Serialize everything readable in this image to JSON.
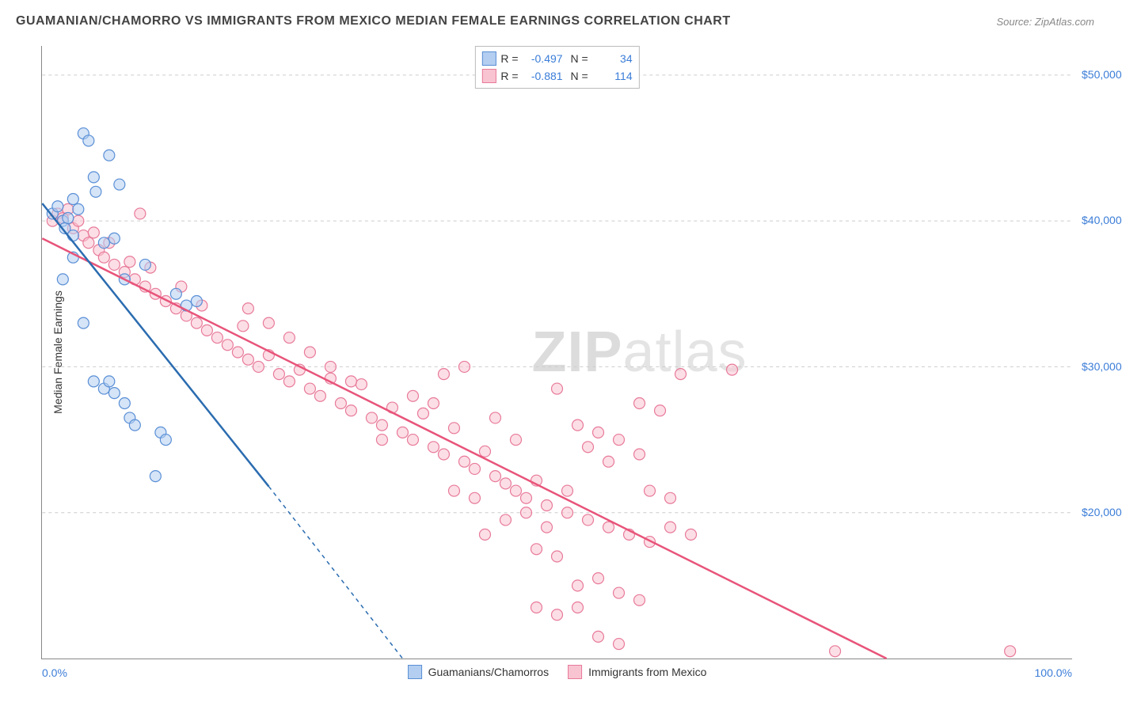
{
  "title": "GUAMANIAN/CHAMORRO VS IMMIGRANTS FROM MEXICO MEDIAN FEMALE EARNINGS CORRELATION CHART",
  "source": "Source: ZipAtlas.com",
  "ylabel": "Median Female Earnings",
  "watermark_bold": "ZIP",
  "watermark_light": "atlas",
  "chart": {
    "type": "scatter",
    "xlim": [
      0,
      100
    ],
    "ylim": [
      10000,
      52000
    ],
    "y_gridlines": [
      20000,
      30000,
      40000,
      50000
    ],
    "ytick_labels": [
      "$20,000",
      "$30,000",
      "$40,000",
      "$50,000"
    ],
    "xtick_labels": {
      "left": "0.0%",
      "right": "100.0%"
    },
    "background_color": "#ffffff",
    "grid_color": "#cccccc",
    "axis_color": "#888888",
    "tick_label_color": "#3b7dd8",
    "marker_radius": 7,
    "marker_opacity": 0.55,
    "series": [
      {
        "name": "Guamanians/Chamorros",
        "color": "#7aa8e0",
        "fill": "#b3cef0",
        "stroke": "#5a8fd6",
        "line_color": "#2b6cb0",
        "R": "-0.497",
        "N": "34",
        "trend": {
          "x1": 0,
          "y1": 41200,
          "x2": 22,
          "y2": 21800,
          "solid_end_x": 22,
          "dash_end_x": 35,
          "dash_end_y": 10000
        },
        "points": [
          [
            1,
            40500
          ],
          [
            1.5,
            41000
          ],
          [
            2,
            40000
          ],
          [
            2.2,
            39500
          ],
          [
            2.5,
            40200
          ],
          [
            3,
            41500
          ],
          [
            3,
            39000
          ],
          [
            3.5,
            40800
          ],
          [
            4,
            46000
          ],
          [
            4.5,
            45500
          ],
          [
            5,
            43000
          ],
          [
            5.2,
            42000
          ],
          [
            6,
            38500
          ],
          [
            6.5,
            44500
          ],
          [
            7,
            38800
          ],
          [
            7.5,
            42500
          ],
          [
            8,
            36000
          ],
          [
            4,
            33000
          ],
          [
            5,
            29000
          ],
          [
            6,
            28500
          ],
          [
            6.5,
            29000
          ],
          [
            7,
            28200
          ],
          [
            8,
            27500
          ],
          [
            8.5,
            26500
          ],
          [
            9,
            26000
          ],
          [
            10,
            37000
          ],
          [
            11,
            22500
          ],
          [
            11.5,
            25500
          ],
          [
            12,
            25000
          ],
          [
            13,
            35000
          ],
          [
            14,
            34200
          ],
          [
            15,
            34500
          ],
          [
            3,
            37500
          ],
          [
            2,
            36000
          ]
        ]
      },
      {
        "name": "Immigrants from Mexico",
        "color": "#f5a3b8",
        "fill": "#f9c4d2",
        "stroke": "#e87a9a",
        "line_color": "#e8547a",
        "R": "-0.881",
        "N": "114",
        "trend": {
          "x1": 0,
          "y1": 38800,
          "x2": 82,
          "y2": 10000
        },
        "points": [
          [
            1,
            40000
          ],
          [
            1.5,
            40500
          ],
          [
            2,
            40200
          ],
          [
            2.5,
            40800
          ],
          [
            3,
            39500
          ],
          [
            3.5,
            40000
          ],
          [
            4,
            39000
          ],
          [
            4.5,
            38500
          ],
          [
            5,
            39200
          ],
          [
            5.5,
            38000
          ],
          [
            6,
            37500
          ],
          [
            6.5,
            38500
          ],
          [
            7,
            37000
          ],
          [
            8,
            36500
          ],
          [
            8.5,
            37200
          ],
          [
            9,
            36000
          ],
          [
            9.5,
            40500
          ],
          [
            10,
            35500
          ],
          [
            10.5,
            36800
          ],
          [
            11,
            35000
          ],
          [
            12,
            34500
          ],
          [
            13,
            34000
          ],
          [
            13.5,
            35500
          ],
          [
            14,
            33500
          ],
          [
            15,
            33000
          ],
          [
            15.5,
            34200
          ],
          [
            16,
            32500
          ],
          [
            17,
            32000
          ],
          [
            18,
            31500
          ],
          [
            19,
            31000
          ],
          [
            19.5,
            32800
          ],
          [
            20,
            30500
          ],
          [
            21,
            30000
          ],
          [
            22,
            30800
          ],
          [
            23,
            29500
          ],
          [
            24,
            29000
          ],
          [
            25,
            29800
          ],
          [
            26,
            28500
          ],
          [
            27,
            28000
          ],
          [
            28,
            29200
          ],
          [
            29,
            27500
          ],
          [
            30,
            27000
          ],
          [
            31,
            28800
          ],
          [
            32,
            26500
          ],
          [
            33,
            26000
          ],
          [
            34,
            27200
          ],
          [
            35,
            25500
          ],
          [
            36,
            25000
          ],
          [
            37,
            26800
          ],
          [
            38,
            24500
          ],
          [
            39,
            24000
          ],
          [
            40,
            25800
          ],
          [
            41,
            23500
          ],
          [
            42,
            23000
          ],
          [
            43,
            24200
          ],
          [
            44,
            22500
          ],
          [
            45,
            22000
          ],
          [
            46,
            21500
          ],
          [
            47,
            21000
          ],
          [
            48,
            22200
          ],
          [
            49,
            20500
          ],
          [
            50,
            28500
          ],
          [
            51,
            20000
          ],
          [
            52,
            26000
          ],
          [
            53,
            19500
          ],
          [
            54,
            25500
          ],
          [
            55,
            19000
          ],
          [
            56,
            25000
          ],
          [
            57,
            18500
          ],
          [
            58,
            24000
          ],
          [
            59,
            18000
          ],
          [
            60,
            27000
          ],
          [
            48,
            17500
          ],
          [
            50,
            17000
          ],
          [
            43,
            18500
          ],
          [
            45,
            19500
          ],
          [
            52,
            15000
          ],
          [
            54,
            15500
          ],
          [
            56,
            14500
          ],
          [
            58,
            14000
          ],
          [
            48,
            13500
          ],
          [
            50,
            13000
          ],
          [
            52,
            13500
          ],
          [
            54,
            11500
          ],
          [
            56,
            11000
          ],
          [
            62,
            29500
          ],
          [
            67,
            29800
          ],
          [
            61,
            19000
          ],
          [
            63,
            18500
          ],
          [
            58,
            27500
          ],
          [
            44,
            26500
          ],
          [
            46,
            25000
          ],
          [
            36,
            28000
          ],
          [
            38,
            27500
          ],
          [
            40,
            21500
          ],
          [
            42,
            21000
          ],
          [
            59,
            21500
          ],
          [
            61,
            21000
          ],
          [
            53,
            24500
          ],
          [
            55,
            23500
          ],
          [
            47,
            20000
          ],
          [
            49,
            19000
          ],
          [
            39,
            29500
          ],
          [
            41,
            30000
          ],
          [
            51,
            21500
          ],
          [
            33,
            25000
          ],
          [
            30,
            29000
          ],
          [
            28,
            30000
          ],
          [
            26,
            31000
          ],
          [
            24,
            32000
          ],
          [
            22,
            33000
          ],
          [
            20,
            34000
          ],
          [
            94,
            10500
          ],
          [
            77,
            10500
          ]
        ]
      }
    ]
  },
  "legend_bottom": [
    {
      "label": "Guamanians/Chamorros",
      "fill": "#b3cef0",
      "stroke": "#5a8fd6"
    },
    {
      "label": "Immigrants from Mexico",
      "fill": "#f9c4d2",
      "stroke": "#e87a9a"
    }
  ]
}
